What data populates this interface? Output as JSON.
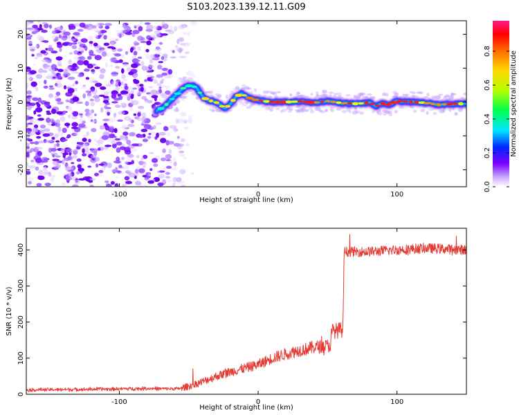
{
  "figure_title": "S103.2023.139.12.11.G09",
  "colors": {
    "axes": "#000000",
    "snr_line": "#e53a32",
    "background": "#ffffff"
  },
  "chart_data": [
    {
      "type": "heatmap",
      "title": "",
      "xlabel": "Height of straight line (km)",
      "ylabel": "Frequency (Hz)",
      "xlim": [
        -167,
        150
      ],
      "ylim": [
        -25,
        24
      ],
      "x_ticks": [
        -100,
        0,
        100
      ],
      "y_ticks": [
        -20,
        -10,
        0,
        10,
        20
      ],
      "grid": false,
      "colorbar": {
        "label": "Normalized spectral amplitude",
        "range": [
          0.0,
          0.98
        ],
        "ticks": [
          0.0,
          0.2,
          0.4,
          0.6,
          0.8
        ]
      },
      "ridge_frequency": {
        "x": [
          -73,
          -68,
          -63,
          -58,
          -53,
          -48,
          -44,
          -40,
          -36,
          -32,
          -28,
          -24,
          -20,
          -16,
          -12,
          -8,
          -4,
          0,
          10,
          20,
          30,
          40,
          50,
          60,
          70,
          80,
          85,
          90,
          95,
          100,
          110,
          120,
          130,
          140,
          150
        ],
        "freq": [
          -2.5,
          -1.5,
          0.5,
          2.5,
          4.5,
          5.0,
          4.0,
          1.5,
          0.5,
          0.2,
          -0.5,
          -2.0,
          -0.5,
          1.5,
          2.5,
          1.5,
          0.8,
          0.5,
          0.0,
          0.0,
          0.2,
          -0.2,
          0.3,
          -0.3,
          -0.5,
          -0.2,
          -1.2,
          -0.5,
          -0.8,
          0.3,
          0.0,
          -0.2,
          -0.8,
          -0.5,
          -0.5
        ]
      },
      "noise_region_x": [
        -167,
        -60
      ]
    },
    {
      "type": "line",
      "title": "",
      "xlabel": "Height of straight line (km)",
      "ylabel": "SNR (10 * v/v)",
      "xlim": [
        -167,
        150
      ],
      "ylim": [
        0,
        460
      ],
      "x_ticks": [
        -100,
        0,
        100
      ],
      "y_ticks": [
        0,
        100,
        200,
        300,
        400
      ],
      "grid": false,
      "trend": {
        "x": [
          -167,
          -120,
          -80,
          -58,
          -50,
          -40,
          -30,
          -20,
          -10,
          0,
          10,
          20,
          30,
          33,
          40,
          52,
          53,
          60,
          61,
          62,
          80,
          100,
          120,
          150
        ],
        "y": [
          12,
          14,
          16,
          15,
          22,
          35,
          50,
          62,
          72,
          82,
          100,
          112,
          122,
          124,
          130,
          135,
          175,
          178,
          180,
          395,
          395,
          400,
          405,
          400
        ]
      }
    }
  ]
}
